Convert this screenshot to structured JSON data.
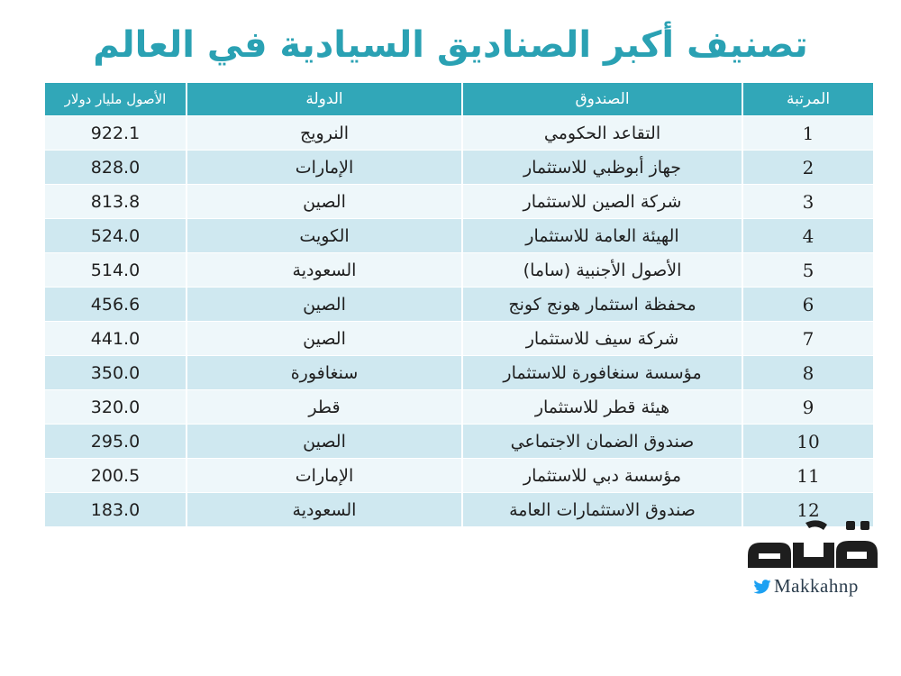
{
  "title": "تصنيف أكبر الصناديق السيادية في العالم",
  "table": {
    "headers": {
      "rank": "المرتبة",
      "fund": "الصندوق",
      "country": "الدولة",
      "assets": "الأصول مليار دولار"
    },
    "rows": [
      {
        "rank": "1",
        "fund": "التقاعد الحكومي",
        "country": "النرويج",
        "assets": "922.1"
      },
      {
        "rank": "2",
        "fund": "جهاز أبوظبي للاستثمار",
        "country": "الإمارات",
        "assets": "828.0"
      },
      {
        "rank": "3",
        "fund": "شركة الصين للاستثمار",
        "country": "الصين",
        "assets": "813.8"
      },
      {
        "rank": "4",
        "fund": "الهيئة العامة للاستثمار",
        "country": "الكويت",
        "assets": "524.0"
      },
      {
        "rank": "5",
        "fund": "الأصول الأجنبية (ساما)",
        "country": "السعودية",
        "assets": "514.0"
      },
      {
        "rank": "6",
        "fund": "محفظة استثمار هونج كونج",
        "country": "الصين",
        "assets": "456.6"
      },
      {
        "rank": "7",
        "fund": "شركة سيف للاستثمار",
        "country": "الصين",
        "assets": "441.0"
      },
      {
        "rank": "8",
        "fund": "مؤسسة سنغافورة للاستثمار",
        "country": "سنغافورة",
        "assets": "350.0"
      },
      {
        "rank": "9",
        "fund": "هيئة قطر للاستثمار",
        "country": "قطر",
        "assets": "320.0"
      },
      {
        "rank": "10",
        "fund": "صندوق الضمان الاجتماعي",
        "country": "الصين",
        "assets": "295.0"
      },
      {
        "rank": "11",
        "fund": "مؤسسة دبي للاستثمار",
        "country": "الإمارات",
        "assets": "200.5"
      },
      {
        "rank": "12",
        "fund": "صندوق الاستثمارات العامة",
        "country": "السعودية",
        "assets": "183.0"
      }
    ]
  },
  "logo": {
    "name": "مكة",
    "handle": "Makkahnp",
    "icon": "twitter-bird-icon"
  },
  "colors": {
    "title": "#2aa1b3",
    "header_bg": "#31a7b8",
    "row_light": "#eef7fa",
    "row_dark": "#cfe8f0",
    "logo_dark": "#1e1e1e"
  }
}
